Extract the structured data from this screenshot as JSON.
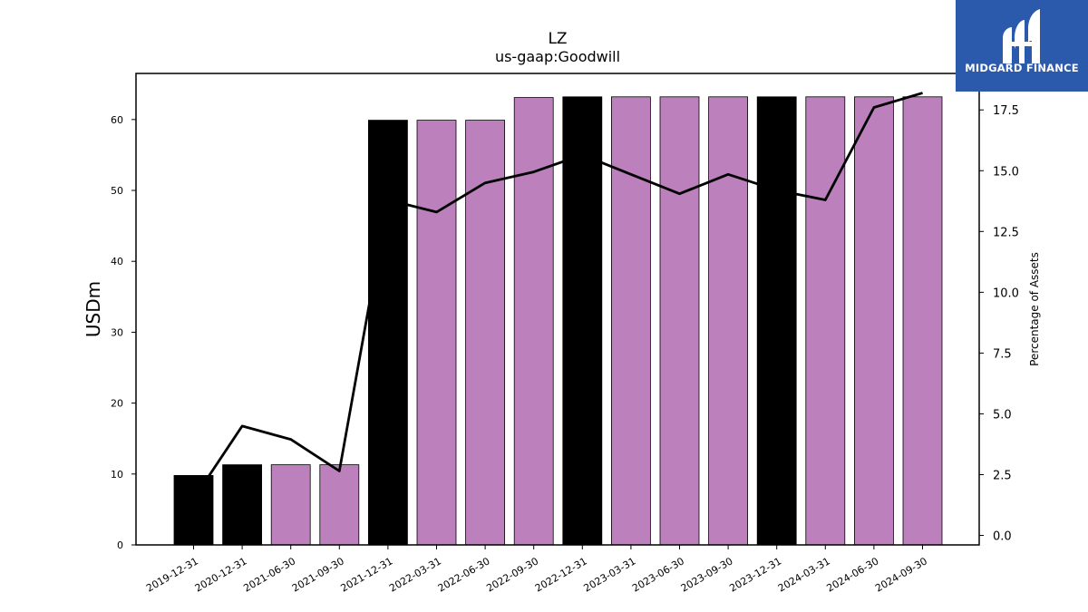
{
  "brand": {
    "name": "MIDGARD FINANCE",
    "color": "#2b5aad"
  },
  "chart_data": {
    "type": "bar",
    "title": "LZ",
    "subtitle": "us-gaap:Goodwill",
    "ylabel": "USDm",
    "y2label": "Percentage of Assets",
    "categories": [
      "2019-12-31",
      "2020-12-31",
      "2021-06-30",
      "2021-09-30",
      "2021-12-31",
      "2022-03-31",
      "2022-06-30",
      "2022-09-30",
      "2022-12-31",
      "2023-03-31",
      "2023-06-30",
      "2023-09-30",
      "2023-12-31",
      "2024-03-31",
      "2024-06-30",
      "2024-09-30"
    ],
    "series": [
      {
        "type": "bar",
        "axis": "left",
        "values": [
          9.8,
          11.3,
          11.3,
          11.3,
          59.9,
          59.9,
          59.9,
          63.1,
          63.2,
          63.2,
          63.2,
          63.2,
          63.2,
          63.2,
          63.2,
          63.2
        ],
        "colors": [
          "#000000",
          "#000000",
          "#bc80bd",
          "#bc80bd",
          "#000000",
          "#bc80bd",
          "#bc80bd",
          "#bc80bd",
          "#000000",
          "#bc80bd",
          "#bc80bd",
          "#bc80bd",
          "#000000",
          "#bc80bd",
          "#bc80bd",
          "#bc80bd"
        ]
      },
      {
        "type": "line",
        "axis": "right",
        "color": "#000000",
        "values": [
          1.5,
          4.5,
          3.95,
          2.65,
          13.8,
          13.3,
          14.5,
          14.95,
          15.65,
          14.85,
          14.05,
          14.85,
          14.2,
          13.8,
          17.6,
          18.2
        ]
      }
    ],
    "ylim": [
      0,
      66.5
    ],
    "y2lim": [
      -0.39,
      19.0
    ],
    "yticks": [
      0,
      10,
      20,
      30,
      40,
      50,
      60
    ],
    "y2ticks": [
      "0.0",
      "2.5",
      "5.0",
      "7.5",
      "10.0",
      "12.5",
      "15.0",
      "17.5"
    ],
    "grid": false
  }
}
